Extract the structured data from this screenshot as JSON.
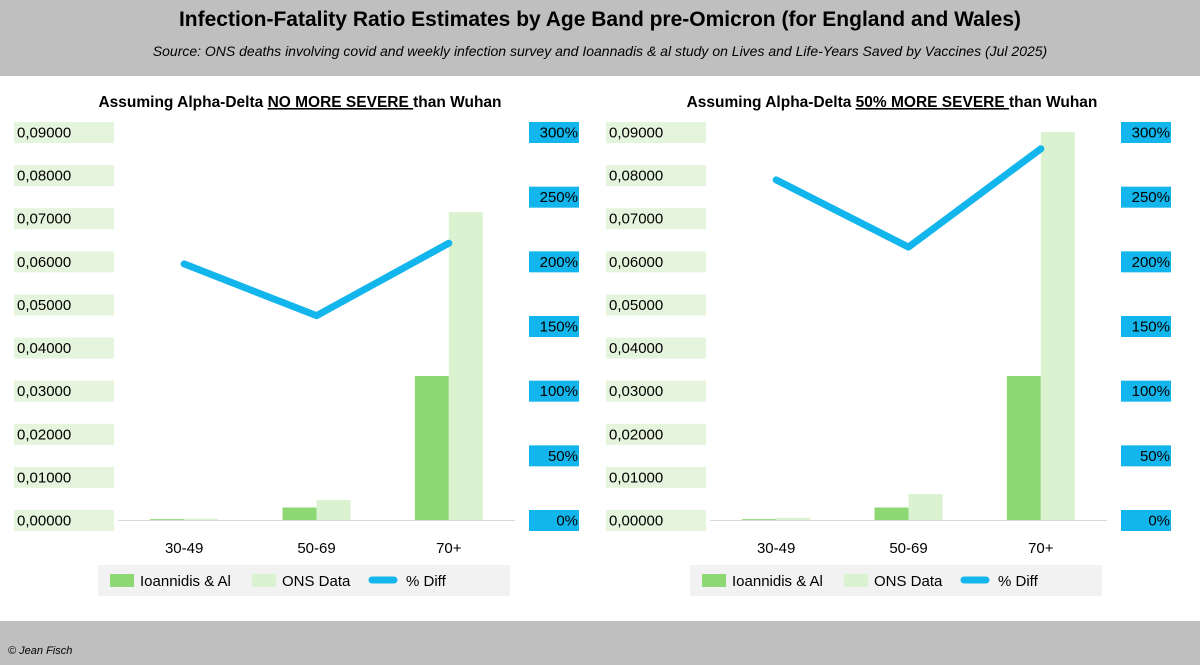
{
  "header": {
    "title": "Infection-Fatality Ratio Estimates by Age Band pre-Omicron (for England and Wales)",
    "subtitle": "Source: ONS deaths involving covid and weekly infection survey and Ioannadis & al study on Lives and Life-Years Saved by Vaccines (Jul 2025)"
  },
  "footer": {
    "copyright": "© Jean Fisch"
  },
  "colors": {
    "ioannidis": "#8ed873",
    "ons": "#daf2d0",
    "diff": "#13b6ec",
    "left_tick_bg": "#e5f4dd",
    "right_tick_bg": "#13b6ec",
    "header_bg": "#bfbfbf"
  },
  "chart_data": [
    {
      "type": "bar",
      "title_prefix": "Assuming Alpha-Delta ",
      "title_emph": "NO MORE SEVERE ",
      "title_suffix": "than Wuhan",
      "categories": [
        "30-49",
        "50-69",
        "70+"
      ],
      "series": [
        {
          "name": "Ioannidis & Al",
          "kind": "bar",
          "axis": "left",
          "values": [
            0.0002,
            0.0029,
            0.0334
          ]
        },
        {
          "name": "ONS Data",
          "kind": "bar",
          "axis": "left",
          "values": [
            0.0003,
            0.0046,
            0.0714
          ]
        },
        {
          "name": "% Diff",
          "kind": "line",
          "axis": "right",
          "values": [
            1.98,
            1.58,
            2.14
          ]
        }
      ],
      "y_left": {
        "min": 0,
        "max": 0.09,
        "step": 0.01,
        "tick_labels": [
          "0,00000",
          "0,01000",
          "0,02000",
          "0,03000",
          "0,04000",
          "0,05000",
          "0,06000",
          "0,07000",
          "0,08000",
          "0,09000"
        ]
      },
      "y_right": {
        "min": 0,
        "max": 3,
        "step": 0.5,
        "tick_labels": [
          "0%",
          "50%",
          "100%",
          "150%",
          "200%",
          "250%",
          "300%"
        ]
      },
      "legend": [
        "Ioannidis & Al",
        "ONS Data",
        "% Diff"
      ],
      "legend_position": "bottom",
      "grid": false
    },
    {
      "type": "bar",
      "title_prefix": "Assuming Alpha-Delta ",
      "title_emph": "50% MORE SEVERE ",
      "title_suffix": "than Wuhan",
      "categories": [
        "30-49",
        "50-69",
        "70+"
      ],
      "series": [
        {
          "name": "Ioannidis & Al",
          "kind": "bar",
          "axis": "left",
          "values": [
            0.0002,
            0.0029,
            0.0334
          ]
        },
        {
          "name": "ONS Data",
          "kind": "bar",
          "axis": "left",
          "values": [
            0.0005,
            0.006,
            0.09
          ]
        },
        {
          "name": "% Diff",
          "kind": "line",
          "axis": "right",
          "values": [
            2.63,
            2.11,
            2.87
          ]
        }
      ],
      "y_left": {
        "min": 0,
        "max": 0.09,
        "step": 0.01,
        "tick_labels": [
          "0,00000",
          "0,01000",
          "0,02000",
          "0,03000",
          "0,04000",
          "0,05000",
          "0,06000",
          "0,07000",
          "0,08000",
          "0,09000"
        ]
      },
      "y_right": {
        "min": 0,
        "max": 3,
        "step": 0.5,
        "tick_labels": [
          "0%",
          "50%",
          "100%",
          "150%",
          "200%",
          "250%",
          "300%"
        ]
      },
      "legend": [
        "Ioannidis & Al",
        "ONS Data",
        "% Diff"
      ],
      "legend_position": "bottom",
      "grid": false
    }
  ]
}
